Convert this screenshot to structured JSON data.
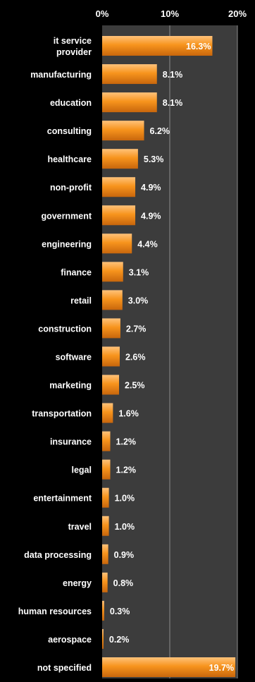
{
  "chart_data": {
    "type": "bar",
    "orientation": "horizontal",
    "title": "",
    "xlabel": "",
    "ylabel": "",
    "xlim": [
      0,
      20
    ],
    "x_ticks": [
      "0%",
      "10%",
      "20%"
    ],
    "x_tick_values": [
      0,
      10,
      20
    ],
    "grid": true,
    "axis_position": "top",
    "categories": [
      "it service provider",
      "manufacturing",
      "education",
      "consulting",
      "healthcare",
      "non-profit",
      "government",
      "engineering",
      "finance",
      "retail",
      "construction",
      "software",
      "marketing",
      "transportation",
      "insurance",
      "legal",
      "entertainment",
      "travel",
      "data processing",
      "energy",
      "human resources",
      "aerospace",
      "not specified"
    ],
    "values": [
      16.3,
      8.1,
      8.1,
      6.2,
      5.3,
      4.9,
      4.9,
      4.4,
      3.1,
      3.0,
      2.7,
      2.6,
      2.5,
      1.6,
      1.2,
      1.2,
      1.0,
      1.0,
      0.9,
      0.8,
      0.3,
      0.2,
      19.7
    ],
    "value_labels": [
      "16.3%",
      "8.1%",
      "8.1%",
      "6.2%",
      "5.3%",
      "4.9%",
      "4.9%",
      "4.4%",
      "3.1%",
      "3.0%",
      "2.7%",
      "2.6%",
      "2.5%",
      "1.6%",
      "1.2%",
      "1.2%",
      "1.0%",
      "1.0%",
      "0.9%",
      "0.8%",
      "0.3%",
      "0.2%",
      "19.7%"
    ],
    "colors": {
      "background": "#000000",
      "plot_area": "#3c3c3c",
      "gridline": "#8c8c8c",
      "bar_light": "#ffc27a",
      "bar_mid": "#f7941d",
      "bar_dark": "#c8660c",
      "text": "#ffffff"
    }
  }
}
